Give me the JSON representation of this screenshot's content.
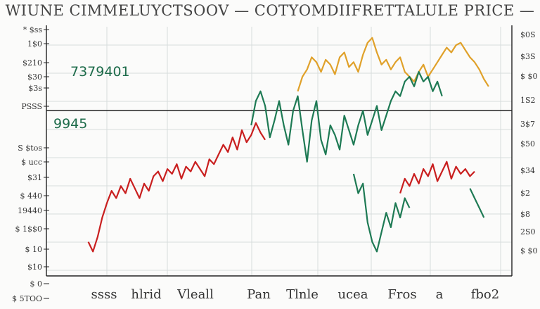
{
  "chart_data": {
    "type": "line",
    "title": "WIUNE CIMMELUYCTSOOV — COTYOMDIIFRETTALULE PRICE —",
    "annotations": [
      "7379401",
      "9945"
    ],
    "x_tick_labels": [
      "ssss",
      "hlrid",
      "Vleall",
      "Pan",
      "Tlnle",
      "ucea",
      "Fros",
      "a",
      "fbo2"
    ],
    "y_left_tick_labels": [
      "* $ss",
      "1$0",
      "$210",
      "$30",
      "$3s",
      "PSSS",
      "S $tos",
      "$ ucc",
      "$31",
      "$ 440",
      "19440",
      "$ 1$$0",
      "$ 10",
      "$10",
      "$ 0",
      "$ 5TOO"
    ],
    "y_right_tick_labels": [
      "$0S",
      "$3S",
      "$ $0",
      "1S2",
      "3$7",
      "$50",
      "$34",
      "$2",
      "$8",
      "2S0",
      "$ $0"
    ],
    "ylim": [
      0,
      100
    ],
    "grid": true,
    "series": [
      {
        "color": "#e0a12a",
        "x": [
          54,
          55,
          56,
          57,
          58,
          59,
          60,
          61,
          62,
          63,
          64,
          65,
          66,
          67,
          68,
          69,
          70,
          71,
          72,
          73,
          74,
          75,
          76,
          77,
          78,
          79,
          80,
          81,
          82,
          83,
          84,
          85,
          86,
          87,
          88,
          89,
          90,
          91,
          92,
          93,
          94,
          95
        ],
        "y": [
          74,
          80,
          83,
          88,
          86,
          82,
          87,
          85,
          81,
          88,
          90,
          84,
          86,
          82,
          89,
          94,
          96,
          90,
          85,
          87,
          83,
          86,
          88,
          82,
          80,
          78,
          82,
          85,
          80,
          83,
          86,
          89,
          92,
          90,
          93,
          94,
          91,
          88,
          86,
          83,
          79,
          76
        ]
      },
      {
        "color": "#c91f1f",
        "x": [
          9,
          10,
          11,
          12,
          13,
          14,
          15,
          16,
          17,
          18,
          19,
          20,
          21,
          22,
          23,
          24,
          25,
          26,
          27,
          28,
          29,
          30,
          31,
          32,
          33,
          34,
          35,
          36,
          37,
          38,
          39,
          40,
          41,
          42,
          43,
          44,
          45,
          46,
          47
        ],
        "y": [
          12,
          8,
          14,
          22,
          28,
          33,
          30,
          35,
          32,
          38,
          34,
          30,
          36,
          33,
          39,
          41,
          37,
          42,
          40,
          44,
          38,
          43,
          41,
          45,
          42,
          39,
          46,
          44,
          48,
          52,
          49,
          55,
          50,
          58,
          53,
          56,
          61,
          57,
          54
        ]
      },
      {
        "color": "#c91f1f",
        "x": [
          76,
          77,
          78,
          79,
          80,
          81,
          82,
          83,
          84,
          85,
          86,
          87,
          88,
          89,
          90,
          91,
          92
        ],
        "y": [
          32,
          38,
          35,
          40,
          36,
          42,
          39,
          44,
          37,
          41,
          45,
          38,
          43,
          40,
          42,
          39,
          41
        ]
      },
      {
        "color": "#1e7a54",
        "x": [
          44,
          45,
          46,
          47,
          48,
          49,
          50,
          51,
          52,
          53,
          54,
          55,
          56,
          57,
          58,
          59,
          60,
          61,
          62,
          63,
          64,
          65,
          66,
          67,
          68,
          69,
          70,
          71,
          72,
          73,
          74,
          75,
          76,
          77,
          78,
          79,
          80,
          81,
          82,
          83,
          84,
          85
        ],
        "y": [
          60,
          70,
          74,
          68,
          55,
          62,
          70,
          60,
          52,
          66,
          72,
          58,
          45,
          62,
          70,
          54,
          48,
          60,
          56,
          50,
          64,
          58,
          52,
          60,
          66,
          56,
          62,
          68,
          58,
          64,
          70,
          74,
          72,
          78,
          80,
          76,
          82,
          78,
          80,
          74,
          78,
          72
        ]
      },
      {
        "color": "#1e7a54",
        "x": [
          66,
          67,
          68,
          69,
          70,
          71,
          72,
          73,
          74,
          75,
          76,
          77,
          78
        ],
        "y": [
          40,
          32,
          36,
          20,
          12,
          8,
          16,
          24,
          18,
          28,
          22,
          30,
          26
        ]
      },
      {
        "color": "#1e7a54",
        "x": [
          91,
          92,
          93,
          94
        ],
        "y": [
          34,
          30,
          26,
          22
        ]
      }
    ]
  }
}
